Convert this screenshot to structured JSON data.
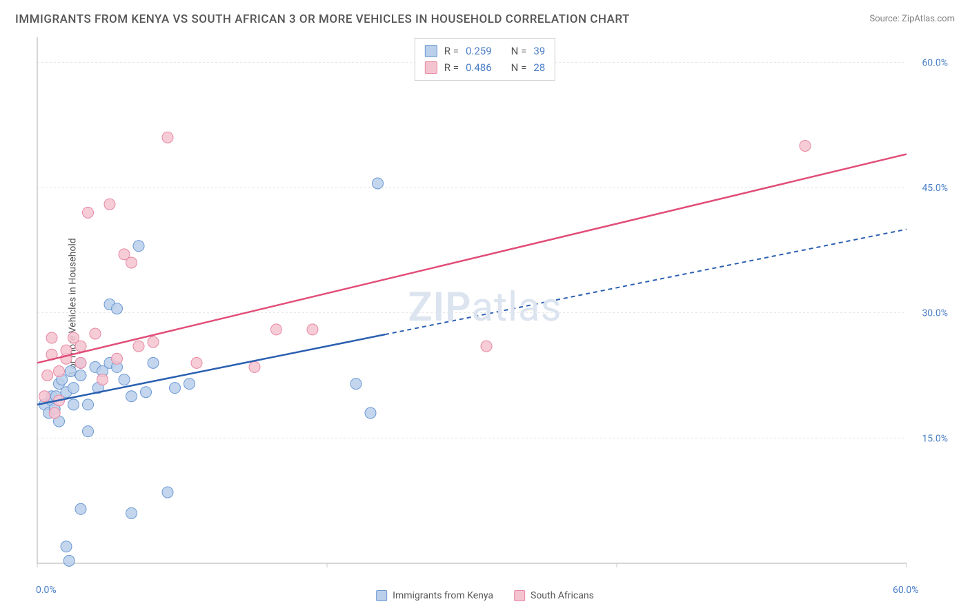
{
  "title": "IMMIGRANTS FROM KENYA VS SOUTH AFRICAN 3 OR MORE VEHICLES IN HOUSEHOLD CORRELATION CHART",
  "source": "Source: ZipAtlas.com",
  "ylabel": "3 or more Vehicles in Household",
  "watermark": {
    "bold": "ZIP",
    "rest": "atlas"
  },
  "chart": {
    "type": "scatter",
    "xlim": [
      0,
      60
    ],
    "ylim": [
      0,
      63
    ],
    "background_color": "#ffffff",
    "grid_color": "#e4e4e4",
    "axis_color": "#c8c8c8",
    "text_color": "#555555",
    "value_color": "#4a7ec7",
    "marker_radius": 8,
    "xticks": [
      {
        "v": 0,
        "label": "0.0%"
      },
      {
        "v": 60,
        "label": "60.0%"
      }
    ],
    "xticks_minor": [
      0,
      20,
      40,
      60
    ],
    "yticks": [
      {
        "v": 15,
        "label": "15.0%"
      },
      {
        "v": 30,
        "label": "30.0%"
      },
      {
        "v": 45,
        "label": "45.0%"
      },
      {
        "v": 60,
        "label": "60.0%"
      }
    ],
    "series": [
      {
        "name": "Immigrants from Kenya",
        "fill": "#b9cfea",
        "stroke": "#6b98d4",
        "line_color": "#2a5fb0",
        "line_dash": "none",
        "R": "0.259",
        "N": "39",
        "regression": {
          "x1": 0,
          "y1": 19,
          "x2": 60,
          "y2": 40,
          "solid_until_x": 24
        },
        "points": [
          [
            0.5,
            19
          ],
          [
            0.8,
            18
          ],
          [
            1,
            19.5
          ],
          [
            1,
            20
          ],
          [
            1.2,
            18.5
          ],
          [
            1.3,
            20
          ],
          [
            1.5,
            21.5
          ],
          [
            1.5,
            17
          ],
          [
            1.7,
            22
          ],
          [
            2,
            2
          ],
          [
            2,
            20.5
          ],
          [
            2.2,
            0.3
          ],
          [
            2.3,
            23
          ],
          [
            2.5,
            19
          ],
          [
            2.5,
            21
          ],
          [
            3,
            6.5
          ],
          [
            3,
            22.5
          ],
          [
            3,
            24
          ],
          [
            3.5,
            19
          ],
          [
            3.5,
            15.8
          ],
          [
            4,
            23.5
          ],
          [
            4.2,
            21
          ],
          [
            4.5,
            23
          ],
          [
            5,
            31
          ],
          [
            5,
            24
          ],
          [
            5.5,
            30.5
          ],
          [
            5.5,
            23.5
          ],
          [
            6,
            22
          ],
          [
            6.5,
            6
          ],
          [
            6.5,
            20
          ],
          [
            7,
            38
          ],
          [
            7.5,
            20.5
          ],
          [
            8,
            24
          ],
          [
            9,
            8.5
          ],
          [
            9.5,
            21
          ],
          [
            22,
            21.5
          ],
          [
            23,
            18
          ],
          [
            23.5,
            45.5
          ],
          [
            10.5,
            21.5
          ]
        ]
      },
      {
        "name": "South Africans",
        "fill": "#f4c3d0",
        "stroke": "#e786a3",
        "line_color": "#e14d78",
        "line_dash": "none",
        "R": "0.486",
        "N": "28",
        "regression": {
          "x1": 0,
          "y1": 24,
          "x2": 60,
          "y2": 49,
          "solid_until_x": 60
        },
        "points": [
          [
            0.5,
            20
          ],
          [
            0.7,
            22.5
          ],
          [
            1,
            25
          ],
          [
            1,
            27
          ],
          [
            1.2,
            18
          ],
          [
            1.5,
            19.5
          ],
          [
            1.5,
            23
          ],
          [
            2,
            24.5
          ],
          [
            2,
            25.5
          ],
          [
            2.5,
            27
          ],
          [
            3,
            26
          ],
          [
            3,
            24
          ],
          [
            3.5,
            42
          ],
          [
            4,
            27.5
          ],
          [
            5,
            43
          ],
          [
            5.5,
            24.5
          ],
          [
            6,
            37
          ],
          [
            6.5,
            36
          ],
          [
            7,
            26
          ],
          [
            8,
            26.5
          ],
          [
            9,
            51
          ],
          [
            11,
            24
          ],
          [
            15,
            23.5
          ],
          [
            16.5,
            28
          ],
          [
            19,
            28
          ],
          [
            31,
            26
          ],
          [
            53,
            50
          ],
          [
            4.5,
            22
          ]
        ]
      }
    ]
  }
}
